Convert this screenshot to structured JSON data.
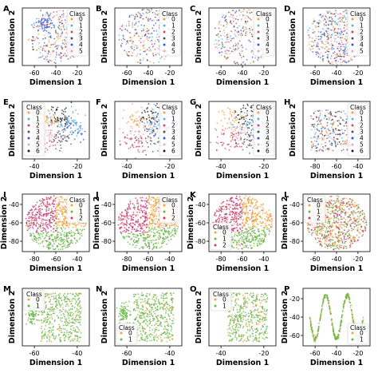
{
  "figure": {
    "xlabel": "Dimension 1",
    "ylabel": "Dimension 2",
    "legend_title": "Class"
  },
  "colors": {
    "0": "#f2a33a",
    "1": "#57b4e9",
    "2": "#d14f6a",
    "3": "#555555",
    "4": "#2f5ee8",
    "5": "#e8a8c0",
    "6": "#222222",
    "c0": "#f2a33a",
    "c1": "#6ab84a",
    "c2": "#c63b72",
    "b0": "#f2a33a",
    "b1": "#6ab84a"
  },
  "chart_data": [
    {
      "id": "A",
      "type": "scatter",
      "xticks": [
        "-60",
        "-40",
        "-20"
      ],
      "yticks": [],
      "legend": [
        "0",
        "1",
        "2",
        "3",
        "4",
        "5"
      ],
      "legend_colors": [
        "0",
        "1",
        "2",
        "3",
        "4",
        "5"
      ],
      "legend_pos": "top-right"
    },
    {
      "id": "B",
      "type": "scatter",
      "xticks": [
        "-60",
        "-40",
        "-20"
      ],
      "yticks": [],
      "legend": [
        "0",
        "1",
        "2",
        "3",
        "4",
        "5"
      ],
      "legend_colors": [
        "0",
        "1",
        "2",
        "3",
        "4",
        "5"
      ],
      "legend_pos": "top-right"
    },
    {
      "id": "C",
      "type": "scatter",
      "xticks": [
        "-60",
        "-40",
        "-20"
      ],
      "yticks": [],
      "legend": [
        "0",
        "1",
        "2",
        "3",
        "4",
        "5"
      ],
      "legend_colors": [
        "0",
        "1",
        "2",
        "3",
        "4",
        "5"
      ],
      "legend_pos": "top-right"
    },
    {
      "id": "D",
      "type": "scatter",
      "xticks": [
        "-60",
        "-40",
        "-20"
      ],
      "yticks": [],
      "legend": [
        "0",
        "1",
        "2",
        "3",
        "4",
        "5"
      ],
      "legend_colors": [
        "0",
        "1",
        "2",
        "3",
        "4",
        "5"
      ],
      "legend_pos": "top-right"
    },
    {
      "id": "E",
      "type": "scatter",
      "xticks": [
        "-40",
        "-20"
      ],
      "yticks": [],
      "legend": [
        "0",
        "1",
        "2",
        "3",
        "4",
        "5",
        "6"
      ],
      "legend_colors": [
        "0",
        "1",
        "2",
        "3",
        "4",
        "5",
        "6"
      ],
      "legend_pos": "top-left"
    },
    {
      "id": "F",
      "type": "scatter",
      "xticks": [
        "-40",
        "-20"
      ],
      "yticks": [],
      "legend": [
        "0",
        "1",
        "2",
        "3",
        "4",
        "5",
        "6"
      ],
      "legend_colors": [
        "0",
        "1",
        "2",
        "3",
        "4",
        "5",
        "6"
      ],
      "legend_pos": "top-right"
    },
    {
      "id": "G",
      "type": "scatter",
      "xticks": [
        "-40",
        "-20"
      ],
      "yticks": [],
      "legend": [
        "0",
        "1",
        "2",
        "3",
        "4",
        "5",
        "6"
      ],
      "legend_colors": [
        "0",
        "1",
        "2",
        "3",
        "4",
        "5",
        "6"
      ],
      "legend_pos": "top-right"
    },
    {
      "id": "H",
      "type": "scatter",
      "xticks": [
        "-80",
        "-60",
        "-40"
      ],
      "yticks": [],
      "legend": [
        "0",
        "1",
        "2",
        "3",
        "4",
        "5",
        "6"
      ],
      "legend_colors": [
        "0",
        "1",
        "2",
        "3",
        "4",
        "5",
        "6"
      ],
      "legend_pos": "top-right"
    },
    {
      "id": "I",
      "type": "scatter",
      "xticks": [
        "-80",
        "-60",
        "-40"
      ],
      "yticks": [
        "-40",
        "-60",
        "-80"
      ],
      "legend": [
        "0",
        "1",
        "2"
      ],
      "legend_colors": [
        "c0",
        "c1",
        "c2"
      ],
      "legend_pos": "top-right"
    },
    {
      "id": "J",
      "type": "scatter",
      "xticks": [
        "-80",
        "-60",
        "-40"
      ],
      "yticks": [
        "-40",
        "-60",
        "-80"
      ],
      "legend": [
        "0",
        "1",
        "2"
      ],
      "legend_colors": [
        "c0",
        "c1",
        "c2"
      ],
      "legend_pos": "top-right"
    },
    {
      "id": "K",
      "type": "scatter",
      "xticks": [
        "-80",
        "-60",
        "-40"
      ],
      "yticks": [
        "-40",
        "-60",
        "-80"
      ],
      "legend": [
        "0",
        "1",
        "2"
      ],
      "legend_colors": [
        "c0",
        "c1",
        "c2"
      ],
      "legend_pos": "bottom-left"
    },
    {
      "id": "L",
      "type": "scatter",
      "xticks": [
        "-60",
        "-40",
        "-20"
      ],
      "yticks": [
        "-40",
        "-60",
        "-80"
      ],
      "legend": [
        "0",
        "1",
        "2"
      ],
      "legend_colors": [
        "c0",
        "c1",
        "c2"
      ],
      "legend_pos": "top-left"
    },
    {
      "id": "M",
      "type": "scatter",
      "xticks": [
        "-60",
        "-40"
      ],
      "yticks": [],
      "legend": [
        "0",
        "1"
      ],
      "legend_colors": [
        "b0",
        "b1"
      ],
      "legend_pos": "top-left"
    },
    {
      "id": "N",
      "type": "scatter",
      "xticks": [
        "-60",
        "-40"
      ],
      "yticks": [],
      "legend": [
        "0",
        "1"
      ],
      "legend_colors": [
        "b0",
        "b1"
      ],
      "legend_pos": "bottom-left"
    },
    {
      "id": "O",
      "type": "scatter",
      "xticks": [
        "-40",
        "-20"
      ],
      "yticks": [],
      "legend": [
        "0",
        "1"
      ],
      "legend_colors": [
        "b0",
        "b1"
      ],
      "legend_pos": "top-left"
    },
    {
      "id": "P",
      "type": "scatter",
      "xticks": [
        "-60",
        "-40",
        "-20"
      ],
      "yticks": [
        "-20",
        "-40",
        "-60"
      ],
      "legend": [
        "0",
        "1"
      ],
      "legend_colors": [
        "b0",
        "b1"
      ],
      "legend_pos": "bottom-right"
    }
  ]
}
